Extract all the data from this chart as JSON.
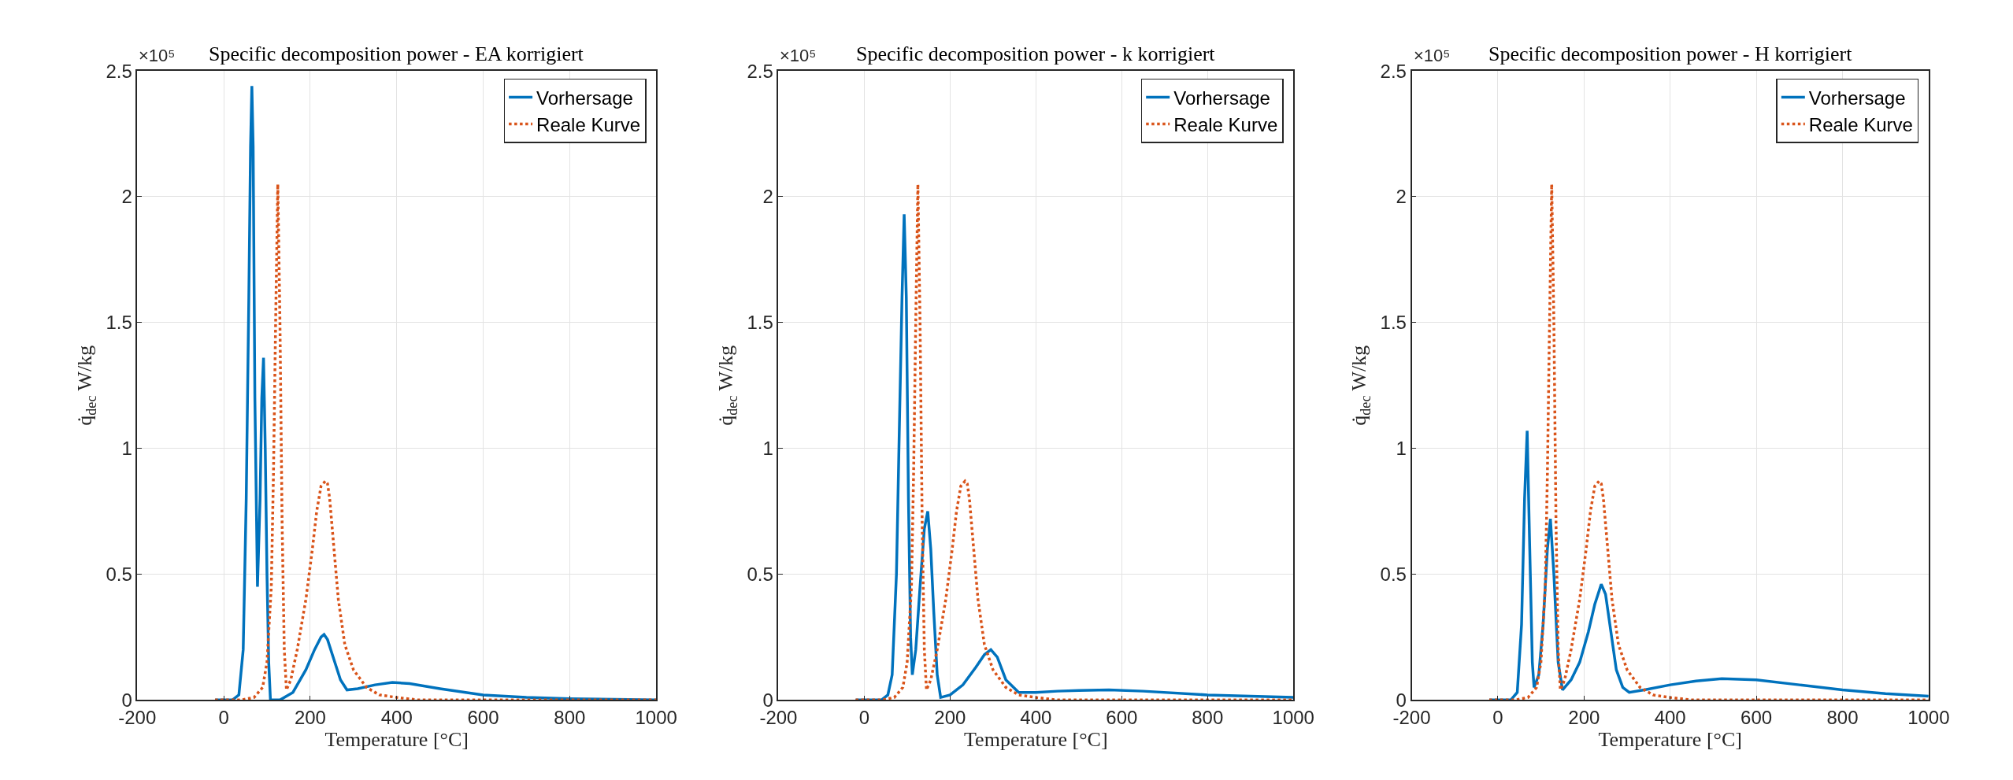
{
  "chart_data": [
    {
      "type": "line",
      "title": "Specific decomposition power - EA korrigiert",
      "xlabel": "Temperature [°C]",
      "ylabel": "q̇$_{dec}$ W/kg",
      "annotations": [
        "×10⁵"
      ],
      "xlim": [
        -200,
        1000
      ],
      "xticks": [
        -200,
        0,
        200,
        400,
        600,
        800,
        1000
      ],
      "ylim": [
        0,
        2.5
      ],
      "yticks": [
        0,
        0.5,
        1,
        1.5,
        2,
        2.5
      ],
      "grid": true,
      "legend": "top right",
      "series": [
        {
          "name": "Vorhersage",
          "color": "#0072bd",
          "line_style": "solid",
          "x": [
            -20,
            20,
            35,
            45,
            52,
            58,
            62,
            65,
            68,
            72,
            78,
            84,
            88,
            92,
            96,
            100,
            104,
            108,
            130,
            160,
            190,
            210,
            225,
            232,
            240,
            255,
            270,
            285,
            310,
            350,
            390,
            430,
            500,
            600,
            700,
            800,
            1000
          ],
          "values": [
            0,
            0,
            0.02,
            0.2,
            0.8,
            1.6,
            2.2,
            2.44,
            2.2,
            1.2,
            0.45,
            0.8,
            1.2,
            1.36,
            1.0,
            0.5,
            0.15,
            0,
            0,
            0.03,
            0.12,
            0.2,
            0.25,
            0.26,
            0.24,
            0.16,
            0.08,
            0.04,
            0.045,
            0.06,
            0.07,
            0.065,
            0.045,
            0.02,
            0.01,
            0.005,
            0
          ]
        },
        {
          "name": "Reale Kurve",
          "color": "#d95319",
          "line_style": "dotted",
          "x": [
            -20,
            0,
            40,
            70,
            90,
            100,
            110,
            115,
            120,
            125,
            130,
            135,
            140,
            145,
            155,
            170,
            190,
            205,
            215,
            225,
            235,
            240,
            245,
            255,
            265,
            280,
            300,
            330,
            360,
            400,
            450,
            500,
            600,
            800,
            1000
          ],
          "values": [
            0,
            0,
            0,
            0.01,
            0.05,
            0.15,
            0.45,
            0.9,
            1.5,
            2.05,
            1.5,
            0.7,
            0.2,
            0.04,
            0.08,
            0.2,
            0.4,
            0.6,
            0.75,
            0.85,
            0.87,
            0.86,
            0.8,
            0.6,
            0.4,
            0.22,
            0.12,
            0.05,
            0.02,
            0.01,
            0,
            0,
            0,
            0,
            0
          ]
        }
      ]
    },
    {
      "type": "line",
      "title": "Specific decomposition power - k korrigiert",
      "xlabel": "Temperature [°C]",
      "ylabel": "q̇$_{dec}$ W/kg",
      "annotations": [
        "×10⁵"
      ],
      "xlim": [
        -200,
        1000
      ],
      "xticks": [
        -200,
        0,
        200,
        400,
        600,
        800,
        1000
      ],
      "ylim": [
        0,
        2.5
      ],
      "yticks": [
        0,
        0.5,
        1,
        1.5,
        2,
        2.5
      ],
      "grid": true,
      "legend": "top right",
      "series": [
        {
          "name": "Vorhersage",
          "color": "#0072bd",
          "line_style": "solid",
          "x": [
            -20,
            40,
            55,
            65,
            75,
            82,
            88,
            93,
            98,
            103,
            108,
            112,
            120,
            130,
            140,
            148,
            155,
            162,
            170,
            178,
            200,
            230,
            260,
            280,
            295,
            310,
            330,
            360,
            400,
            450,
            500,
            570,
            650,
            800,
            1000
          ],
          "values": [
            0,
            0,
            0.02,
            0.1,
            0.5,
            1.1,
            1.6,
            1.93,
            1.6,
            0.8,
            0.25,
            0.1,
            0.2,
            0.45,
            0.68,
            0.75,
            0.6,
            0.35,
            0.1,
            0.01,
            0.02,
            0.06,
            0.13,
            0.18,
            0.2,
            0.17,
            0.08,
            0.03,
            0.03,
            0.035,
            0.038,
            0.04,
            0.035,
            0.02,
            0.01
          ]
        },
        {
          "name": "Reale Kurve",
          "color": "#d95319",
          "line_style": "dotted",
          "x": [
            -20,
            0,
            40,
            70,
            90,
            100,
            110,
            115,
            120,
            125,
            130,
            135,
            140,
            145,
            155,
            170,
            190,
            205,
            215,
            225,
            235,
            240,
            245,
            255,
            265,
            280,
            300,
            330,
            360,
            400,
            450,
            500,
            600,
            800,
            1000
          ],
          "values": [
            0,
            0,
            0,
            0.01,
            0.05,
            0.15,
            0.45,
            0.9,
            1.5,
            2.05,
            1.5,
            0.7,
            0.2,
            0.04,
            0.08,
            0.2,
            0.4,
            0.6,
            0.75,
            0.85,
            0.87,
            0.86,
            0.8,
            0.6,
            0.4,
            0.22,
            0.12,
            0.05,
            0.02,
            0.01,
            0,
            0,
            0,
            0,
            0
          ]
        }
      ]
    },
    {
      "type": "line",
      "title": "Specific decomposition power - H korrigiert",
      "xlabel": "Temperature [°C]",
      "ylabel": "q̇$_{dec}$ W/kg",
      "annotations": [
        "×10⁵"
      ],
      "xlim": [
        -200,
        1000
      ],
      "xticks": [
        -200,
        0,
        200,
        400,
        600,
        800,
        1000
      ],
      "ylim": [
        0,
        2.5
      ],
      "yticks": [
        0,
        0.5,
        1,
        1.5,
        2,
        2.5
      ],
      "grid": true,
      "legend": "top right",
      "series": [
        {
          "name": "Vorhersage",
          "color": "#0072bd",
          "line_style": "solid",
          "x": [
            -20,
            30,
            45,
            55,
            62,
            68,
            74,
            80,
            84,
            95,
            105,
            115,
            122,
            130,
            140,
            150,
            170,
            190,
            210,
            225,
            240,
            250,
            260,
            275,
            290,
            305,
            340,
            400,
            460,
            520,
            600,
            700,
            800,
            900,
            1000
          ],
          "values": [
            0,
            0,
            0.03,
            0.3,
            0.8,
            1.07,
            0.6,
            0.15,
            0.05,
            0.1,
            0.3,
            0.6,
            0.72,
            0.5,
            0.15,
            0.04,
            0.08,
            0.15,
            0.27,
            0.38,
            0.46,
            0.42,
            0.3,
            0.12,
            0.05,
            0.03,
            0.04,
            0.06,
            0.075,
            0.085,
            0.08,
            0.06,
            0.04,
            0.025,
            0.015
          ]
        },
        {
          "name": "Reale Kurve",
          "color": "#d95319",
          "line_style": "dotted",
          "x": [
            -20,
            0,
            40,
            70,
            90,
            100,
            110,
            115,
            120,
            125,
            130,
            135,
            140,
            145,
            155,
            170,
            190,
            205,
            215,
            225,
            235,
            240,
            245,
            255,
            265,
            280,
            300,
            330,
            360,
            400,
            450,
            500,
            600,
            800,
            1000
          ],
          "values": [
            0,
            0,
            0,
            0.01,
            0.05,
            0.15,
            0.45,
            0.9,
            1.5,
            2.05,
            1.5,
            0.7,
            0.2,
            0.04,
            0.08,
            0.2,
            0.4,
            0.6,
            0.75,
            0.85,
            0.87,
            0.86,
            0.8,
            0.6,
            0.4,
            0.22,
            0.12,
            0.05,
            0.02,
            0.01,
            0,
            0,
            0,
            0,
            0
          ]
        }
      ]
    }
  ]
}
